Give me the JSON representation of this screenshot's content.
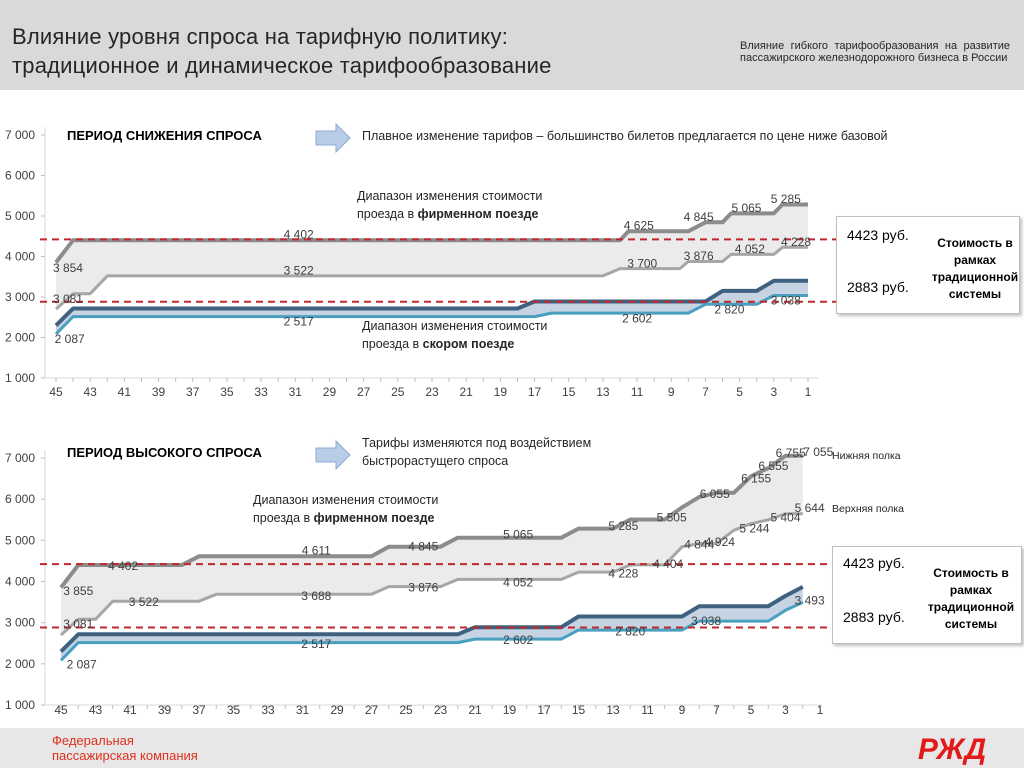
{
  "header": {
    "title_line1": "Влияние уровня спроса на тарифную политику:",
    "title_line2": "традиционное и динамическое тарифообразование",
    "subtitle": "Влияние гибкого тарифообразования на развитие пассажирского железнодорожного бизнеса в России"
  },
  "footer": {
    "company_line1": "Федеральная",
    "company_line2": "пассажирская компания",
    "logo_text": "РЖД"
  },
  "colors": {
    "firm_band": "#ebebeb",
    "firm_line": "#8c8c8c",
    "fast_band": "#c5d3e3",
    "fast_upper": "#3f6180",
    "fast_lower": "#4a9fc0",
    "reference": "#c0282c",
    "arrow": "#b9cde6"
  },
  "chart_data": [
    {
      "type": "area",
      "heading": "ПЕРИОД СНИЖЕНИЯ СПРОСА",
      "arrow_text": [
        "Плавное изменение тарифов – большинство билетов предлагается по цене ниже базовой"
      ],
      "firm_band_label": [
        "Диапазон изменения стоимости",
        "проезда в ",
        "фирменном поезде"
      ],
      "fast_band_label": [
        "Диапазон изменения стоимости",
        "проезда в ",
        "скором поезде"
      ],
      "x_ticks": [
        45,
        43,
        41,
        39,
        37,
        35,
        33,
        31,
        29,
        27,
        25,
        23,
        21,
        19,
        17,
        15,
        13,
        11,
        9,
        7,
        5,
        3,
        1
      ],
      "x_range": [
        45.5,
        0.5
      ],
      "y_ticks": [
        "1 000",
        "2 000",
        "3 000",
        "4 000",
        "5 000",
        "6 000",
        "7 000"
      ],
      "ylim": [
        1000,
        7000
      ],
      "series": [
        {
          "role": "firm_upper",
          "points": [
            [
              45,
              3854
            ],
            [
              44,
              4402
            ],
            [
              17,
              4402
            ],
            [
              12,
              4402
            ],
            [
              11.5,
              4625
            ],
            [
              8,
              4625
            ],
            [
              7,
              4845
            ],
            [
              6,
              4845
            ],
            [
              5.5,
              5065
            ],
            [
              3,
              5065
            ],
            [
              2.5,
              5285
            ],
            [
              1,
              5285
            ]
          ]
        },
        {
          "role": "firm_lower",
          "points": [
            [
              45,
              2700
            ],
            [
              44,
              3081
            ],
            [
              43,
              3081
            ],
            [
              42,
              3522
            ],
            [
              13,
              3522
            ],
            [
              12,
              3700
            ],
            [
              8.5,
              3700
            ],
            [
              8,
              3876
            ],
            [
              6,
              3876
            ],
            [
              5.5,
              4052
            ],
            [
              3,
              4052
            ],
            [
              2.5,
              4228
            ],
            [
              1,
              4228
            ]
          ]
        },
        {
          "role": "fast_upper",
          "points": [
            [
              45,
              2300
            ],
            [
              44,
              2717
            ],
            [
              18,
              2717
            ],
            [
              17,
              2890
            ],
            [
              7,
              2890
            ],
            [
              6,
              3150
            ],
            [
              4,
              3150
            ],
            [
              3,
              3400
            ],
            [
              1,
              3400
            ]
          ]
        },
        {
          "role": "fast_lower",
          "points": [
            [
              45,
              2087
            ],
            [
              44,
              2517
            ],
            [
              17,
              2517
            ],
            [
              16,
              2602
            ],
            [
              8,
              2602
            ],
            [
              7,
              2820
            ],
            [
              4,
              2820
            ],
            [
              3,
              3038
            ],
            [
              1,
              3038
            ]
          ]
        }
      ],
      "value_labels": [
        {
          "x": 44.3,
          "y": 3720,
          "text": "3 854"
        },
        {
          "x": 44.3,
          "y": 2950,
          "text": "3 081"
        },
        {
          "x": 44.2,
          "y": 1960,
          "text": "2 087"
        },
        {
          "x": 30.8,
          "y": 4540,
          "text": "4 402"
        },
        {
          "x": 30.8,
          "y": 3650,
          "text": "3 522"
        },
        {
          "x": 30.8,
          "y": 2390,
          "text": "2 517"
        },
        {
          "x": 10.9,
          "y": 4760,
          "text": "4 625"
        },
        {
          "x": 7.4,
          "y": 4980,
          "text": "4 845"
        },
        {
          "x": 4.6,
          "y": 5200,
          "text": "5 065"
        },
        {
          "x": 2.3,
          "y": 5420,
          "text": "5 285"
        },
        {
          "x": 10.7,
          "y": 3830,
          "text": "3 700"
        },
        {
          "x": 7.4,
          "y": 4010,
          "text": "3 876"
        },
        {
          "x": 4.4,
          "y": 4190,
          "text": "4 052"
        },
        {
          "x": 1.7,
          "y": 4360,
          "text": "4 228"
        },
        {
          "x": 11.0,
          "y": 2470,
          "text": "2 602"
        },
        {
          "x": 5.6,
          "y": 2690,
          "text": "2 820"
        },
        {
          "x": 2.3,
          "y": 2910,
          "text": "3 038"
        }
      ],
      "reference_lines": [
        4423,
        2883
      ],
      "box": {
        "price_high": "4423 руб.",
        "price_low": "2883 руб.",
        "label": [
          "Стоимость в",
          "рамках",
          "традиционной",
          "системы"
        ]
      }
    },
    {
      "type": "area",
      "heading": "ПЕРИОД  ВЫСОКОГО СПРОСА",
      "arrow_text": [
        "Тарифы изменяются под воздействием",
        "быстрорастущего спроса"
      ],
      "firm_band_label": [
        "Диапазон изменения стоимости",
        "проезда в ",
        "фирменном поезде"
      ],
      "x_ticks": [
        45,
        43,
        41,
        39,
        37,
        35,
        33,
        31,
        29,
        27,
        25,
        23,
        21,
        19,
        17,
        15,
        13,
        11,
        9,
        7,
        5,
        3,
        1
      ],
      "x_range": [
        45.5,
        0.5
      ],
      "y_ticks": [
        "1 000",
        "2 000",
        "3 000",
        "4 000",
        "5 000",
        "6 000",
        "7 000"
      ],
      "ylim": [
        1000,
        7000
      ],
      "legend": [
        "Нижняя полка",
        "Верхняя полка"
      ],
      "series": [
        {
          "role": "firm_upper",
          "points": [
            [
              45,
              3855
            ],
            [
              44,
              4402
            ],
            [
              38,
              4402
            ],
            [
              37,
              4611
            ],
            [
              27,
              4611
            ],
            [
              26,
              4845
            ],
            [
              23,
              4845
            ],
            [
              22,
              5065
            ],
            [
              16,
              5065
            ],
            [
              15,
              5285
            ],
            [
              13,
              5285
            ],
            [
              12,
              5505
            ],
            [
              10,
              5505
            ],
            [
              9,
              5800
            ],
            [
              8,
              6055
            ],
            [
              7,
              6155
            ],
            [
              6,
              6155
            ],
            [
              5,
              6555
            ],
            [
              4,
              6755
            ],
            [
              3,
              7055
            ],
            [
              2,
              7055
            ]
          ]
        },
        {
          "role": "firm_lower",
          "points": [
            [
              45,
              2700
            ],
            [
              44,
              3081
            ],
            [
              43,
              3081
            ],
            [
              42,
              3522
            ],
            [
              37,
              3522
            ],
            [
              36,
              3688
            ],
            [
              27,
              3688
            ],
            [
              26,
              3876
            ],
            [
              23,
              3876
            ],
            [
              22,
              4052
            ],
            [
              16,
              4052
            ],
            [
              15,
              4228
            ],
            [
              13,
              4228
            ],
            [
              12,
              4404
            ],
            [
              10,
              4404
            ],
            [
              9,
              4844
            ],
            [
              8,
              4924
            ],
            [
              7,
              4924
            ],
            [
              6,
              5244
            ],
            [
              5,
              5404
            ],
            [
              4,
              5500
            ],
            [
              3,
              5644
            ],
            [
              2,
              5644
            ]
          ]
        },
        {
          "role": "fast_upper",
          "points": [
            [
              45,
              2300
            ],
            [
              44,
              2717
            ],
            [
              22,
              2717
            ],
            [
              21,
              2890
            ],
            [
              16,
              2890
            ],
            [
              15,
              3150
            ],
            [
              9,
              3150
            ],
            [
              8,
              3400
            ],
            [
              4,
              3400
            ],
            [
              3,
              3650
            ],
            [
              2,
              3870
            ]
          ]
        },
        {
          "role": "fast_lower",
          "points": [
            [
              45,
              2087
            ],
            [
              44,
              2517
            ],
            [
              22,
              2517
            ],
            [
              21,
              2602
            ],
            [
              16,
              2602
            ],
            [
              15,
              2820
            ],
            [
              9,
              2820
            ],
            [
              8,
              3038
            ],
            [
              4,
              3038
            ],
            [
              3,
              3300
            ],
            [
              2,
              3493
            ]
          ]
        }
      ],
      "value_labels": [
        {
          "x": 44.0,
          "y": 3770,
          "text": "3 855"
        },
        {
          "x": 44.0,
          "y": 2970,
          "text": "3 081"
        },
        {
          "x": 43.8,
          "y": 1980,
          "text": "2 087"
        },
        {
          "x": 41.4,
          "y": 4380,
          "text": "4 402"
        },
        {
          "x": 40.2,
          "y": 3500,
          "text": "3 522"
        },
        {
          "x": 30.2,
          "y": 4750,
          "text": "4 611"
        },
        {
          "x": 30.2,
          "y": 3650,
          "text": "3 688"
        },
        {
          "x": 30.2,
          "y": 2480,
          "text": "2 517"
        },
        {
          "x": 24.0,
          "y": 4850,
          "text": "4 845"
        },
        {
          "x": 24.0,
          "y": 3850,
          "text": "3 876"
        },
        {
          "x": 18.5,
          "y": 5140,
          "text": "5 065"
        },
        {
          "x": 18.5,
          "y": 3980,
          "text": "4 052"
        },
        {
          "x": 18.5,
          "y": 2580,
          "text": "2 602"
        },
        {
          "x": 12.4,
          "y": 5350,
          "text": "5 285"
        },
        {
          "x": 12.4,
          "y": 4190,
          "text": "4 228"
        },
        {
          "x": 12.0,
          "y": 2780,
          "text": "2 820"
        },
        {
          "x": 9.6,
          "y": 5560,
          "text": "5 505"
        },
        {
          "x": 9.8,
          "y": 4420,
          "text": "4 404"
        },
        {
          "x": 7.1,
          "y": 6120,
          "text": "6 055"
        },
        {
          "x": 8.0,
          "y": 4900,
          "text": "4 844"
        },
        {
          "x": 4.7,
          "y": 6500,
          "text": "6 155"
        },
        {
          "x": 3.7,
          "y": 6800,
          "text": "6 555"
        },
        {
          "x": 2.7,
          "y": 7120,
          "text": "6 755"
        },
        {
          "x": 1.1,
          "y": 7150,
          "text": "7 055"
        },
        {
          "x": 6.8,
          "y": 4960,
          "text": "4 924"
        },
        {
          "x": 4.8,
          "y": 5290,
          "text": "5 244"
        },
        {
          "x": 3.0,
          "y": 5560,
          "text": "5 404"
        },
        {
          "x": 1.6,
          "y": 5790,
          "text": "5 644"
        },
        {
          "x": 7.6,
          "y": 3040,
          "text": "3 038"
        },
        {
          "x": 1.6,
          "y": 3540,
          "text": "3 493"
        }
      ],
      "reference_lines": [
        4423,
        2883
      ],
      "box": {
        "price_high": "4423 руб.",
        "price_low": "2883 руб.",
        "label": [
          "Стоимость в",
          "рамках",
          "традиционной",
          "системы"
        ]
      }
    }
  ]
}
